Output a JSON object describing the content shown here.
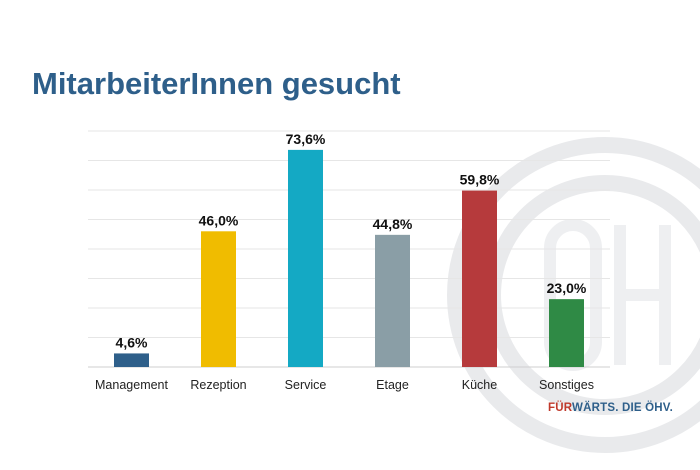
{
  "slide": {
    "title": "MitarbeiterInnen gesucht"
  },
  "brand": {
    "part1": "FÜR",
    "part2": "WÄRTS. DIE ÖHV."
  },
  "chart_data": {
    "type": "bar",
    "categories": [
      "Management",
      "Rezeption",
      "Service",
      "Etage",
      "Küche",
      "Sonstiges"
    ],
    "values": [
      4.6,
      46.0,
      73.6,
      44.8,
      59.8,
      23.0
    ],
    "value_labels": [
      "4,6%",
      "46,0%",
      "73,6%",
      "44,8%",
      "59,8%",
      "23,0%"
    ],
    "colors": [
      "#2e5f8a",
      "#f0bc00",
      "#14a9c4",
      "#8a9ea6",
      "#b63a3c",
      "#2f8a45"
    ],
    "ylim": [
      0,
      80
    ],
    "grid": true,
    "legend": "none",
    "title": "",
    "xlabel": "",
    "ylabel": ""
  }
}
